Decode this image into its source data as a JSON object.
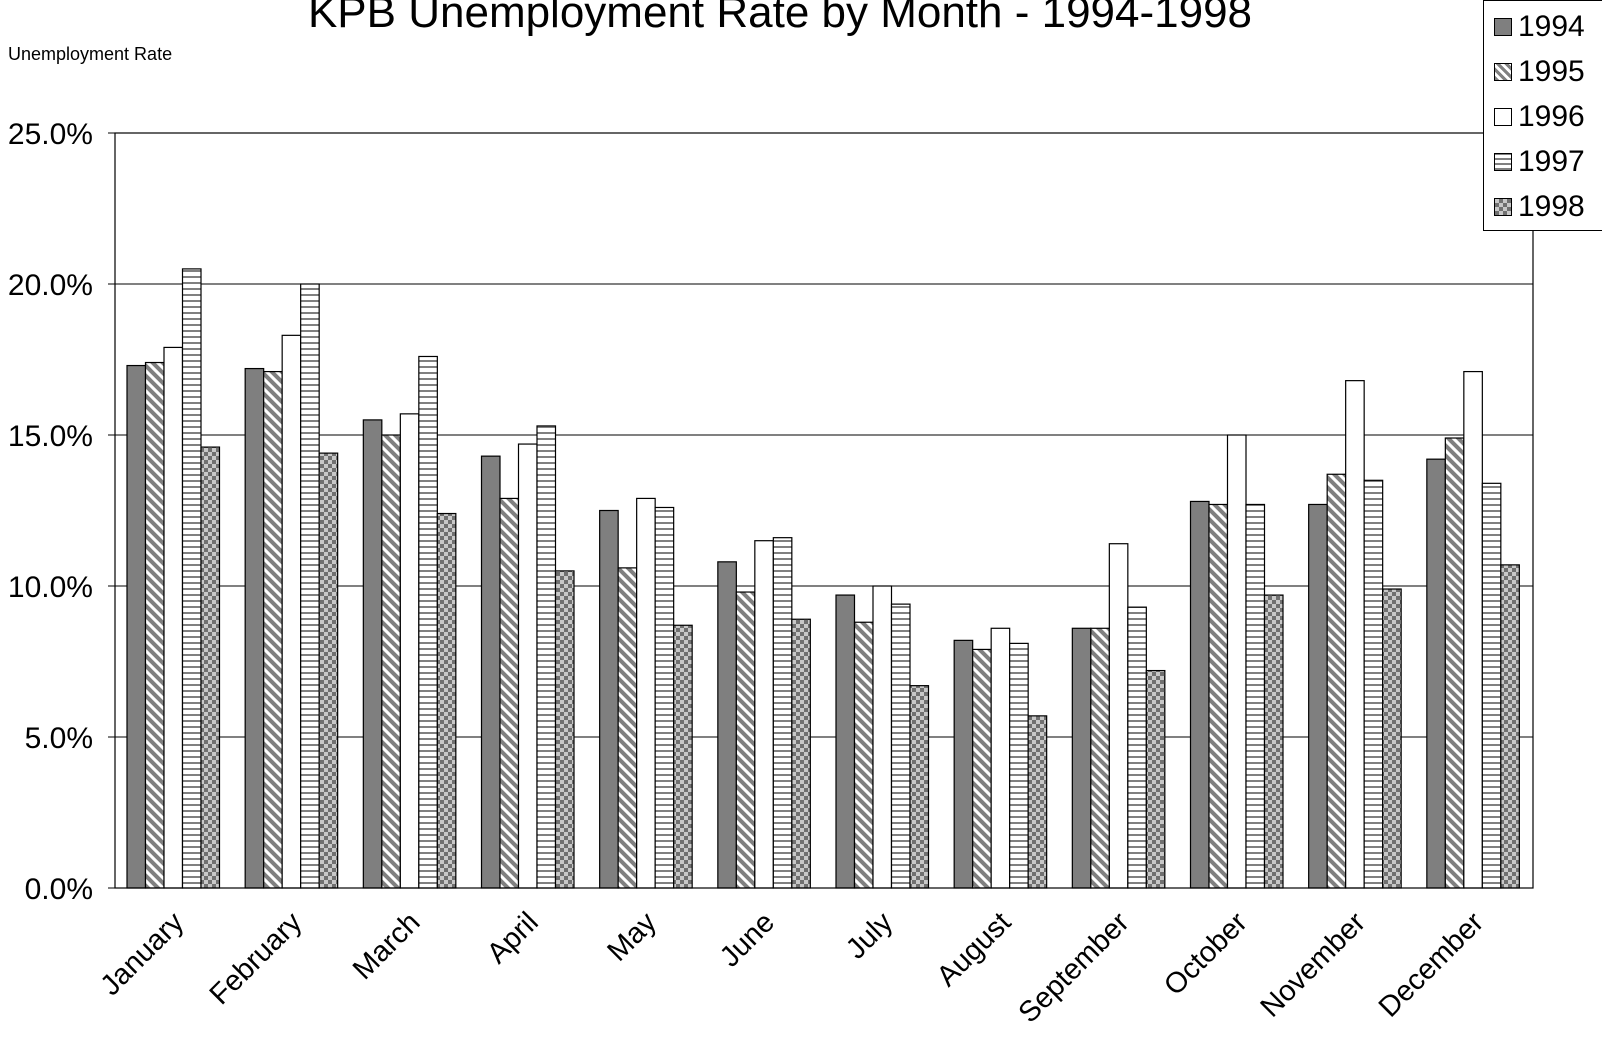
{
  "chart_data": {
    "type": "bar",
    "title": "KPB Unemployment Rate by Month - 1994-1998",
    "ylabel": "Unemployment Rate",
    "xlabel": "",
    "ylim": [
      0,
      25
    ],
    "yticks": [
      "0.0%",
      "5.0%",
      "10.0%",
      "15.0%",
      "20.0%",
      "25.0%"
    ],
    "grid": true,
    "legend_position": "top-right",
    "categories": [
      "January",
      "February",
      "March",
      "April",
      "May",
      "June",
      "July",
      "August",
      "September",
      "October",
      "November",
      "December"
    ],
    "series": [
      {
        "name": "1994",
        "pattern": "solid-gray",
        "color": "#7f7f7f",
        "values": [
          17.3,
          17.2,
          15.5,
          14.3,
          12.5,
          10.8,
          9.7,
          8.2,
          8.6,
          12.8,
          12.7,
          14.2
        ]
      },
      {
        "name": "1995",
        "pattern": "diagonal-stripes",
        "color": "#808080",
        "values": [
          17.4,
          17.1,
          15.0,
          12.9,
          10.6,
          9.8,
          8.8,
          7.9,
          8.6,
          12.7,
          13.7,
          14.9
        ]
      },
      {
        "name": "1996",
        "pattern": "white",
        "color": "#ffffff",
        "values": [
          17.9,
          18.3,
          15.7,
          14.7,
          12.9,
          11.5,
          10.0,
          8.6,
          11.4,
          15.0,
          16.8,
          17.1
        ]
      },
      {
        "name": "1997",
        "pattern": "horizontal-stripes",
        "color": "#808080",
        "values": [
          20.5,
          20.0,
          17.6,
          15.3,
          12.6,
          11.6,
          9.4,
          8.1,
          9.3,
          12.7,
          13.5,
          13.4
        ]
      },
      {
        "name": "1998",
        "pattern": "checkerboard",
        "color": "#808080",
        "values": [
          14.6,
          14.4,
          12.4,
          10.5,
          8.7,
          8.9,
          6.7,
          5.7,
          7.2,
          9.7,
          9.9,
          10.7
        ]
      }
    ]
  }
}
